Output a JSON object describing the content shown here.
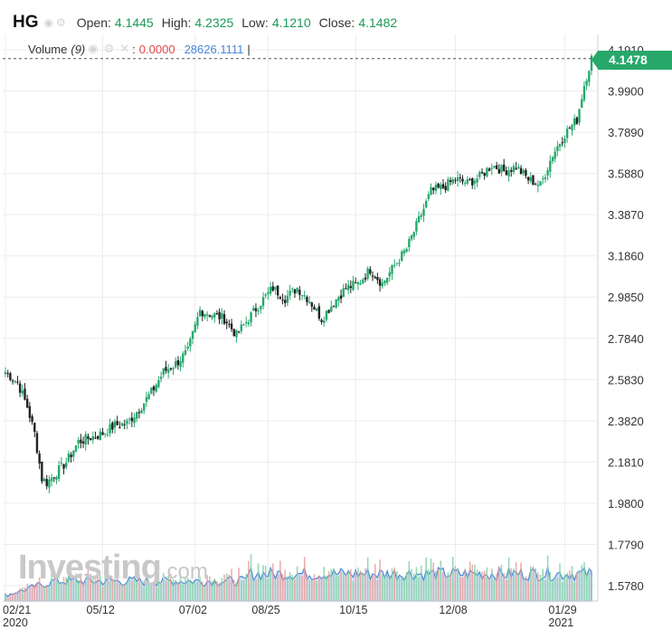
{
  "header": {
    "symbol": "HG",
    "open_label": "Open:",
    "open": "4.1445",
    "high_label": "High:",
    "high": "4.2325",
    "low_label": "Low:",
    "low": "4.1210",
    "close_label": "Close:",
    "close": "4.1482"
  },
  "volume_indicator": {
    "label": "Volume",
    "period": "(9)",
    "value1": "0.0000",
    "value2": "28626.1111",
    "separator": "|"
  },
  "current_price_badge": "4.1478",
  "watermark": {
    "brand": "Investing",
    "suffix": ".com"
  },
  "colors": {
    "up": "#26a96c",
    "down": "#222222",
    "badge": "#27a86a",
    "grid": "#ececec",
    "volume_area": "#a8c4e6",
    "volume_line": "#4a86d8"
  },
  "chart_data": {
    "type": "candlestick",
    "y_ticks": [
      "4.1910",
      "3.9900",
      "3.7890",
      "3.5880",
      "3.3870",
      "3.1860",
      "2.9850",
      "2.7840",
      "2.5830",
      "2.3820",
      "2.1810",
      "1.9800",
      "1.7790",
      "1.5780"
    ],
    "ylim": [
      1.53,
      4.24
    ],
    "x_ticks": [
      {
        "label": "02/21",
        "sub": "2020"
      },
      {
        "label": "05/12",
        "sub": ""
      },
      {
        "label": "07/02",
        "sub": ""
      },
      {
        "label": "08/25",
        "sub": ""
      },
      {
        "label": "10/15",
        "sub": ""
      },
      {
        "label": "12/08",
        "sub": ""
      },
      {
        "label": "01/29",
        "sub": "2021"
      }
    ],
    "close_anchors": [
      [
        0,
        2.62
      ],
      [
        5,
        2.57
      ],
      [
        9,
        2.45
      ],
      [
        12,
        2.32
      ],
      [
        15,
        2.1
      ],
      [
        17,
        2.08
      ],
      [
        21,
        2.13
      ],
      [
        25,
        2.18
      ],
      [
        30,
        2.28
      ],
      [
        35,
        2.3
      ],
      [
        40,
        2.32
      ],
      [
        45,
        2.36
      ],
      [
        50,
        2.37
      ],
      [
        55,
        2.44
      ],
      [
        60,
        2.52
      ],
      [
        65,
        2.62
      ],
      [
        70,
        2.66
      ],
      [
        75,
        2.72
      ],
      [
        80,
        2.92
      ],
      [
        85,
        2.9
      ],
      [
        90,
        2.88
      ],
      [
        95,
        2.8
      ],
      [
        100,
        2.88
      ],
      [
        105,
        2.96
      ],
      [
        110,
        3.03
      ],
      [
        115,
        2.98
      ],
      [
        120,
        3.03
      ],
      [
        125,
        2.97
      ],
      [
        130,
        2.88
      ],
      [
        135,
        2.96
      ],
      [
        140,
        3.03
      ],
      [
        145,
        3.05
      ],
      [
        150,
        3.12
      ],
      [
        155,
        3.05
      ],
      [
        160,
        3.14
      ],
      [
        165,
        3.22
      ],
      [
        170,
        3.36
      ],
      [
        175,
        3.5
      ],
      [
        180,
        3.52
      ],
      [
        185,
        3.56
      ],
      [
        190,
        3.54
      ],
      [
        195,
        3.57
      ],
      [
        200,
        3.63
      ],
      [
        205,
        3.6
      ],
      [
        210,
        3.62
      ],
      [
        215,
        3.56
      ],
      [
        220,
        3.53
      ],
      [
        225,
        3.68
      ],
      [
        230,
        3.78
      ],
      [
        235,
        3.85
      ],
      [
        238,
        4.02
      ],
      [
        241,
        4.15
      ]
    ],
    "series": [
      {
        "name": "Volume",
        "type": "bar"
      }
    ],
    "grid": true
  }
}
